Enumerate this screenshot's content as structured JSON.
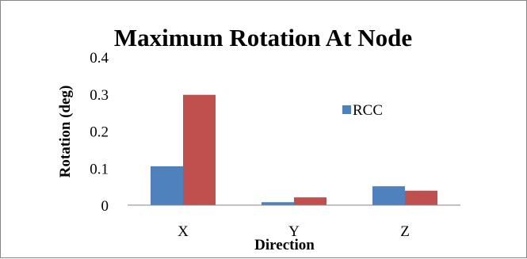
{
  "chart_data": {
    "type": "bar",
    "title": "Maximum Rotation At Node",
    "xlabel": "Direction",
    "ylabel": "Rotation (deg)",
    "categories": [
      "X",
      "Y",
      "Z"
    ],
    "series": [
      {
        "name": "RCC",
        "color": "#4F81BD",
        "values": [
          0.105,
          0.008,
          0.051
        ]
      },
      {
        "color": "#C0504D",
        "values": [
          0.298,
          0.021,
          0.039
        ]
      }
    ],
    "ylim": [
      0,
      0.4
    ],
    "yticks": [
      0,
      0.1,
      0.2,
      0.3,
      0.4
    ],
    "ytick_labels": [
      "0",
      "0.1",
      "0.2",
      "0.3",
      "0.4"
    ],
    "grid": false,
    "legend_position": "top-right"
  }
}
